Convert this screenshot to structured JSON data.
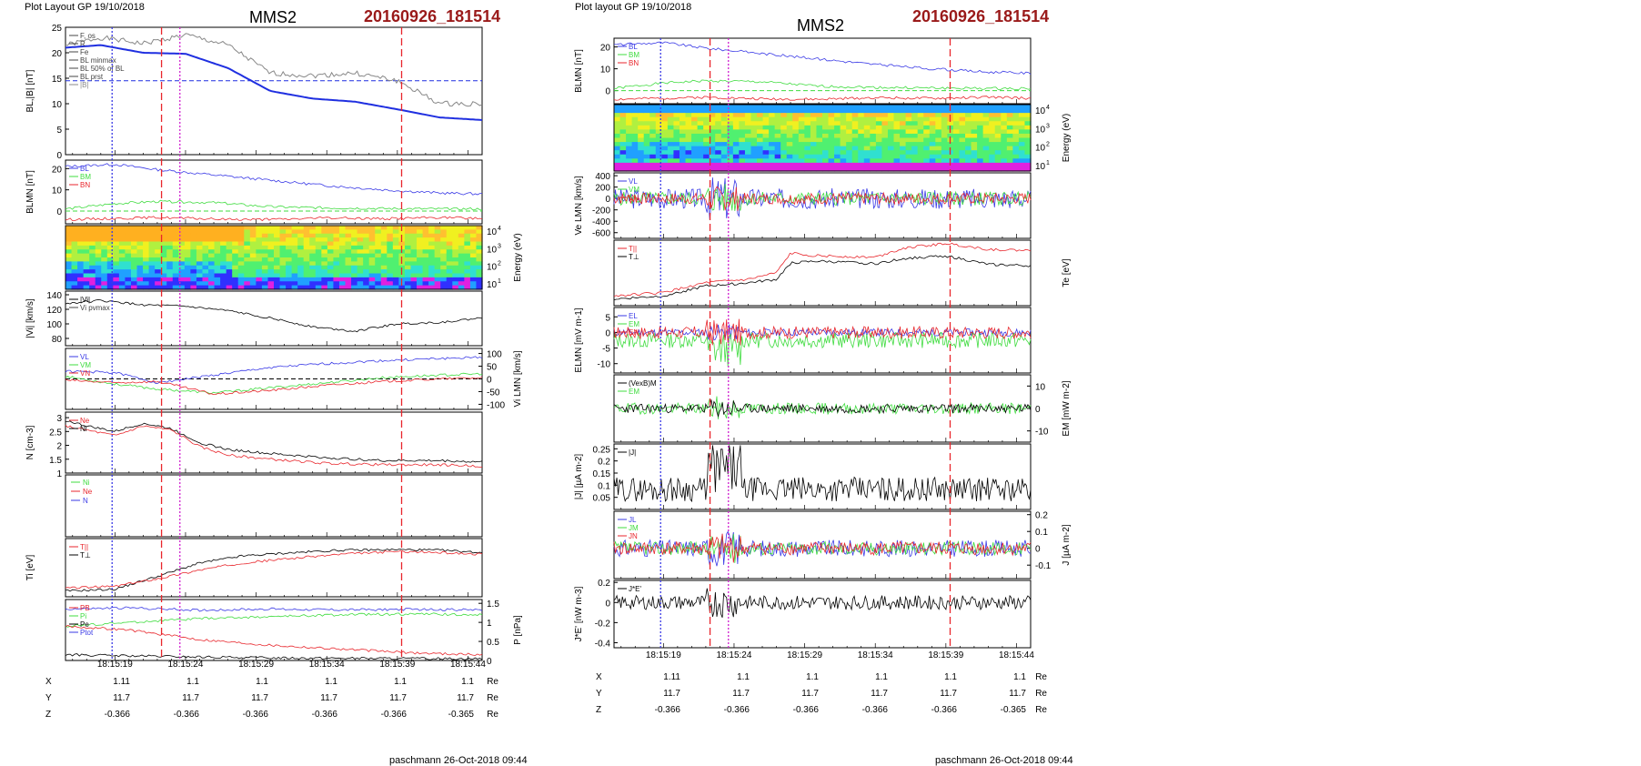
{
  "left_page": {
    "header": "Plot Layout GP 19/10/2018",
    "spacecraft": "MMS2",
    "event": "20160926_181514",
    "footer": "paschmann 26-Oct-2018 09:44"
  },
  "right_page": {
    "header": "Plot layout GP 19/10/2018",
    "spacecraft": "MMS2",
    "event": "20160926_181514",
    "footer": "paschmann 26-Oct-2018 09:44"
  },
  "time_axis": {
    "ticks": [
      "18:15:19",
      "18:15:24",
      "18:15:29",
      "18:15:34",
      "18:15:39",
      "18:15:44"
    ],
    "tick_seconds": [
      19,
      24,
      29,
      34,
      39,
      44
    ],
    "range_seconds": [
      15.5,
      45
    ]
  },
  "ephemeris_left": {
    "rows": [
      {
        "label": "X",
        "values": [
          "1.11",
          "1.1",
          "1.1",
          "1.1",
          "1.1",
          "1.1"
        ],
        "unit": "Re"
      },
      {
        "label": "Y",
        "values": [
          "11.7",
          "11.7",
          "11.7",
          "11.7",
          "11.7",
          "11.7"
        ],
        "unit": "Re"
      },
      {
        "label": "Z",
        "values": [
          "-0.366",
          "-0.366",
          "-0.366",
          "-0.366",
          "-0.366",
          "-0.365"
        ],
        "unit": "Re"
      }
    ]
  },
  "ephemeris_right": {
    "rows": [
      {
        "label": "X",
        "values": [
          "1.11",
          "1.1",
          "1.1",
          "1.1",
          "1.1",
          "1.1"
        ],
        "unit": "Re"
      },
      {
        "label": "Y",
        "values": [
          "11.7",
          "11.7",
          "11.7",
          "11.7",
          "11.7",
          "11.7"
        ],
        "unit": "Re"
      },
      {
        "label": "Z",
        "values": [
          "-0.366",
          "-0.366",
          "-0.366",
          "-0.366",
          "-0.366",
          "-0.365"
        ],
        "unit": "Re"
      }
    ]
  },
  "colors": {
    "red": "#e8262c",
    "green": "#3fdc3f",
    "blue": "#3a3ae6",
    "black": "#000000",
    "magenta": "#d020d0",
    "darkblue": "#1f2fe0"
  },
  "vlines_left": [
    {
      "t": 18.8,
      "color": "#3a3ae6",
      "dash": "2,2"
    },
    {
      "t": 22.3,
      "color": "#e8262c",
      "dash": "8,4"
    },
    {
      "t": 23.6,
      "color": "#d020d0",
      "dash": "2,2"
    },
    {
      "t": 39.3,
      "color": "#e8262c",
      "dash": "8,4"
    }
  ],
  "vlines_right": [
    {
      "t": 18.8,
      "color": "#3a3ae6",
      "dash": "2,2"
    },
    {
      "t": 22.3,
      "color": "#e8262c",
      "dash": "8,4"
    },
    {
      "t": 23.6,
      "color": "#d020d0",
      "dash": "2,2"
    },
    {
      "t": 39.3,
      "color": "#e8262c",
      "dash": "8,4"
    }
  ],
  "chart_data": [
    {
      "page": "left",
      "type": "line",
      "ylabel": "BL,|B| [nT]",
      "ylim": [
        0,
        25
      ],
      "yticks": [
        0,
        5,
        10,
        15,
        20,
        25
      ],
      "legend": [
        "F, os",
        "R",
        "Fe",
        "BL minmax",
        "BL 50% of BL",
        "BL prst",
        "|B|"
      ],
      "series": [
        {
          "name": "BL",
          "color": "#1f2fe0",
          "width": 2,
          "t": [
            15.5,
            18,
            21,
            24,
            27,
            30,
            33,
            36,
            39,
            42,
            45
          ],
          "y": [
            21,
            21.5,
            20,
            19.8,
            17,
            12.5,
            11,
            10.4,
            8.9,
            7.3,
            6.8
          ]
        },
        {
          "name": "|B|",
          "color": "#888888",
          "width": 1,
          "t": [
            15.5,
            18,
            21,
            24,
            27,
            30,
            33,
            36,
            39,
            42,
            45
          ],
          "y": [
            21.5,
            23,
            21.8,
            23.5,
            21.5,
            16,
            15.5,
            16,
            14.5,
            10,
            10
          ]
        }
      ],
      "hlines": [
        {
          "y": 14.5,
          "color": "#1f2fe0"
        }
      ]
    },
    {
      "page": "left",
      "type": "line",
      "ylabel": "BLMN [nT]",
      "ylim": [
        -6,
        24
      ],
      "yticks": [
        0,
        10,
        20
      ],
      "series": [
        {
          "name": "BL",
          "color": "#3a3ae6",
          "t": [
            15.5,
            19,
            22,
            26,
            30,
            34,
            38,
            42,
            45
          ],
          "y": [
            21,
            22,
            19.5,
            17,
            14.5,
            12,
            10,
            8.5,
            8
          ]
        },
        {
          "name": "BM",
          "color": "#3fdc3f",
          "t": [
            15.5,
            19,
            22,
            26,
            30,
            34,
            38,
            42,
            45
          ],
          "y": [
            1,
            3.5,
            4.5,
            4,
            2,
            1.5,
            1.2,
            1,
            1
          ]
        },
        {
          "name": "BN",
          "color": "#e8262c",
          "t": [
            15.5,
            19,
            22,
            26,
            30,
            34,
            38,
            42,
            45
          ],
          "y": [
            -4,
            -3.5,
            -3,
            -3.8,
            -4,
            -3.2,
            -3.6,
            -3,
            -3.5
          ]
        }
      ],
      "hlines": [
        {
          "y": 0,
          "color": "#3fdc3f"
        }
      ]
    },
    {
      "page": "left",
      "type": "heatmap",
      "ylabel": "Energy (eV)",
      "yticks_labels": [
        "10^1",
        "10^2",
        "10^3",
        "10^4"
      ]
    },
    {
      "page": "left",
      "type": "line",
      "ylabel": "|Vi| [km/s]",
      "ylim": [
        70,
        145
      ],
      "yticks": [
        80,
        100,
        120,
        140
      ],
      "legend": [
        "|Vi|",
        "Vi pvmax"
      ],
      "series": [
        {
          "name": "|Vi|",
          "color": "#000000",
          "t": [
            15.5,
            18,
            21,
            24,
            27,
            30,
            33,
            36,
            39,
            42,
            45
          ],
          "y": [
            128,
            132,
            126,
            124,
            118,
            108,
            96,
            90,
            100,
            102,
            108
          ]
        }
      ]
    },
    {
      "page": "left",
      "type": "line",
      "ylabel": "Vi LMN [km/s]",
      "ylim": [
        -120,
        120
      ],
      "yticks": [
        -100,
        -50,
        0,
        50,
        100
      ],
      "series": [
        {
          "name": "VL",
          "color": "#3a3ae6",
          "t": [
            15.5,
            19,
            22,
            26,
            30,
            34,
            38,
            42,
            45
          ],
          "y": [
            30,
            25,
            -15,
            15,
            45,
            60,
            72,
            80,
            85
          ]
        },
        {
          "name": "VM",
          "color": "#3fdc3f",
          "t": [
            15.5,
            19,
            22,
            26,
            30,
            34,
            38,
            42,
            45
          ],
          "y": [
            10,
            -20,
            -40,
            -55,
            -35,
            -15,
            5,
            15,
            20
          ]
        },
        {
          "name": "VN",
          "color": "#e8262c",
          "t": [
            15.5,
            19,
            22,
            26,
            30,
            34,
            38,
            42,
            45
          ],
          "y": [
            -5,
            -15,
            -10,
            -60,
            -45,
            -25,
            -10,
            0,
            5
          ]
        }
      ],
      "hlines": [
        {
          "y": 0,
          "color": "#000000"
        }
      ]
    },
    {
      "page": "left",
      "type": "line",
      "ylabel": "N [cm-3]",
      "ylim": [
        1,
        3.2
      ],
      "yticks": [
        1,
        1.5,
        2,
        2.5,
        3
      ],
      "legend": [
        "Ne",
        "Ni"
      ],
      "series": [
        {
          "name": "Ni",
          "color": "#000000",
          "t": [
            15.5,
            17,
            19,
            21,
            23,
            25,
            27,
            30,
            34,
            38,
            42,
            45
          ],
          "y": [
            2.9,
            2.7,
            2.5,
            2.8,
            2.6,
            2.1,
            1.85,
            1.7,
            1.55,
            1.45,
            1.45,
            1.4
          ]
        },
        {
          "name": "Ne",
          "color": "#e8262c",
          "t": [
            15.5,
            17,
            19,
            21,
            23,
            25,
            27,
            30,
            34,
            38,
            42,
            45
          ],
          "y": [
            2.7,
            2.55,
            2.35,
            2.7,
            2.55,
            1.95,
            1.65,
            1.5,
            1.35,
            1.3,
            1.3,
            1.25
          ]
        }
      ]
    },
    {
      "page": "left",
      "type": "line",
      "ylabel": "",
      "legend": [
        "Ni",
        "Ne",
        "N"
      ],
      "series": []
    },
    {
      "page": "left",
      "type": "line",
      "ylabel": "Ti [eV]",
      "ylim": [
        0,
        10
      ],
      "yticks": [],
      "legend": [
        "T||",
        "T⊥"
      ],
      "series": [
        {
          "name": "T⊥",
          "color": "#000000",
          "t": [
            15.5,
            19,
            22,
            25,
            28,
            31,
            35,
            39,
            42,
            45
          ],
          "y": [
            1,
            1.3,
            3.5,
            5.8,
            7,
            7.5,
            8,
            8.1,
            8,
            7.6
          ]
        },
        {
          "name": "T||",
          "color": "#e8262c",
          "t": [
            15.5,
            19,
            22,
            25,
            28,
            31,
            35,
            39,
            42,
            45
          ],
          "y": [
            1.5,
            1.8,
            3.1,
            4.6,
            5.8,
            6.5,
            7.3,
            7.8,
            7.6,
            7.3
          ]
        }
      ]
    },
    {
      "page": "left",
      "type": "line",
      "ylabel": "P [nPa]",
      "ylim": [
        0,
        1.6
      ],
      "yticks": [
        0,
        0.5,
        1,
        1.5
      ],
      "legend": [
        "PB",
        "Pi",
        "Pe",
        "Ptot"
      ],
      "series": [
        {
          "name": "Ptot",
          "color": "#3a3ae6",
          "t": [
            15.5,
            20,
            25,
            30,
            35,
            40,
            45
          ],
          "y": [
            1.35,
            1.38,
            1.32,
            1.35,
            1.33,
            1.34,
            1.33
          ]
        },
        {
          "name": "Pi",
          "color": "#3fdc3f",
          "t": [
            15.5,
            20,
            25,
            30,
            35,
            40,
            45
          ],
          "y": [
            0.9,
            1.0,
            1.1,
            1.15,
            1.2,
            1.22,
            1.2
          ]
        },
        {
          "name": "PB",
          "color": "#e8262c",
          "t": [
            15.5,
            20,
            25,
            30,
            35,
            40,
            45
          ],
          "y": [
            0.9,
            0.8,
            0.55,
            0.4,
            0.3,
            0.2,
            0.15
          ]
        },
        {
          "name": "Pe",
          "color": "#000000",
          "t": [
            15.5,
            20,
            25,
            30,
            35,
            40,
            45
          ],
          "y": [
            0.15,
            0.12,
            0.09,
            0.07,
            0.06,
            0.05,
            0.05
          ]
        }
      ]
    },
    {
      "page": "right",
      "type": "line",
      "ylabel": "BLMN [nT]",
      "ylim": [
        -6,
        24
      ],
      "yticks": [
        0,
        10,
        20
      ],
      "series": [
        {
          "name": "BL",
          "color": "#3a3ae6",
          "t": [
            15.5,
            19,
            22,
            26,
            30,
            34,
            38,
            42,
            45
          ],
          "y": [
            21,
            22,
            19.5,
            17,
            14.5,
            12,
            10,
            8.5,
            8
          ]
        },
        {
          "name": "BM",
          "color": "#3fdc3f",
          "t": [
            15.5,
            19,
            22,
            26,
            30,
            34,
            38,
            42,
            45
          ],
          "y": [
            1,
            3.5,
            4.5,
            4,
            2,
            1.5,
            1.2,
            1,
            1
          ]
        },
        {
          "name": "BN",
          "color": "#e8262c",
          "t": [
            15.5,
            19,
            22,
            26,
            30,
            34,
            38,
            42,
            45
          ],
          "y": [
            -4,
            -3.5,
            -3,
            -3.8,
            -4,
            -3.2,
            -3.6,
            -3,
            -3.5
          ]
        }
      ],
      "hlines": [
        {
          "y": 0,
          "color": "#3fdc3f"
        }
      ]
    },
    {
      "page": "right",
      "type": "heatmap",
      "ylabel": "Energy (eV)",
      "yticks_labels": [
        "10^1",
        "10^2",
        "10^3",
        "10^4"
      ]
    },
    {
      "page": "right",
      "type": "line",
      "ylabel": "Ve LMN [km/s]",
      "ylim": [
        -700,
        450
      ],
      "yticks": [
        -600,
        -400,
        -200,
        0,
        200,
        400
      ],
      "series": [
        {
          "name": "VL",
          "color": "#3a3ae6",
          "noise": 180,
          "seed": 3
        },
        {
          "name": "VM",
          "color": "#3fdc3f",
          "noise": 120,
          "seed": 5
        },
        {
          "name": "VN",
          "color": "#e8262c",
          "noise": 100,
          "seed": 7
        }
      ]
    },
    {
      "page": "right",
      "type": "line",
      "ylabel": "Te [eV]",
      "ylim": [
        0,
        10
      ],
      "yticks": [],
      "legend": [
        "T||",
        "T⊥"
      ],
      "series": [
        {
          "name": "T||",
          "color": "#e8262c",
          "t": [
            15.5,
            19,
            22,
            25,
            27,
            28,
            30,
            34,
            36,
            39,
            42,
            45
          ],
          "y": [
            1.5,
            2,
            3.5,
            4,
            5,
            8,
            7.6,
            7.4,
            8.8,
            9.5,
            8.6,
            8.4
          ]
        },
        {
          "name": "T⊥",
          "color": "#000000",
          "t": [
            15.5,
            19,
            22,
            25,
            27,
            28,
            30,
            34,
            36,
            39,
            42,
            45
          ],
          "y": [
            1,
            1.5,
            3,
            3.5,
            4,
            6.5,
            6.8,
            6.4,
            7.2,
            7.6,
            6.3,
            6.1
          ]
        }
      ]
    },
    {
      "page": "right",
      "type": "line",
      "ylabel": "ELMN [mV m-1]",
      "ylim": [
        -13,
        8
      ],
      "yticks": [
        -10,
        -5,
        0,
        5
      ],
      "series": [
        {
          "name": "EL",
          "color": "#3a3ae6",
          "noise": 1.2,
          "seed": 11
        },
        {
          "name": "EM",
          "color": "#3fdc3f",
          "noise": 2.5,
          "seed": 13,
          "offset": -2.5
        },
        {
          "name": "EN",
          "color": "#e8262c",
          "noise": 2,
          "seed": 17
        }
      ]
    },
    {
      "page": "right",
      "type": "line",
      "ylabel": "EM [mW m-2]",
      "ylim": [
        -15,
        15
      ],
      "yticks": [
        -10,
        0,
        10
      ],
      "legend": [
        "(VexB)M",
        "EM"
      ],
      "series": [
        {
          "name": "EM",
          "color": "#3fdc3f",
          "noise": 2.5,
          "seed": 19
        },
        {
          "name": "(VexB)M",
          "color": "#000000",
          "noise": 2,
          "seed": 23
        }
      ]
    },
    {
      "page": "right",
      "type": "line",
      "ylabel": "|J| [µA m-2]",
      "ylim": [
        0,
        0.27
      ],
      "yticks": [
        0.05,
        0.1,
        0.15,
        0.2,
        0.25
      ],
      "legend": [
        "|J|"
      ],
      "series": [
        {
          "name": "|J|",
          "color": "#000000",
          "noise": 0.05,
          "seed": 29,
          "offset": 0.07,
          "positive": true
        }
      ]
    },
    {
      "page": "right",
      "type": "line",
      "ylabel": "J [µA m-2]",
      "ylim": [
        -0.18,
        0.22
      ],
      "yticks": [
        -0.1,
        0,
        0.1,
        0.2
      ],
      "legend": [
        "JL",
        "JM",
        "JN"
      ],
      "series": [
        {
          "name": "JL",
          "color": "#3a3ae6",
          "noise": 0.05,
          "seed": 31
        },
        {
          "name": "JM",
          "color": "#3fdc3f",
          "noise": 0.04,
          "seed": 37
        },
        {
          "name": "JN",
          "color": "#e8262c",
          "noise": 0.04,
          "seed": 41
        }
      ]
    },
    {
      "page": "right",
      "type": "line",
      "ylabel": "J*E' [nW m-3]",
      "ylim": [
        -0.45,
        0.22
      ],
      "yticks": [
        -0.4,
        -0.2,
        0,
        0.2
      ],
      "legend": [
        "J*E'"
      ],
      "series": [
        {
          "name": "J*E'",
          "color": "#000000",
          "noise": 0.07,
          "seed": 43
        }
      ]
    }
  ]
}
